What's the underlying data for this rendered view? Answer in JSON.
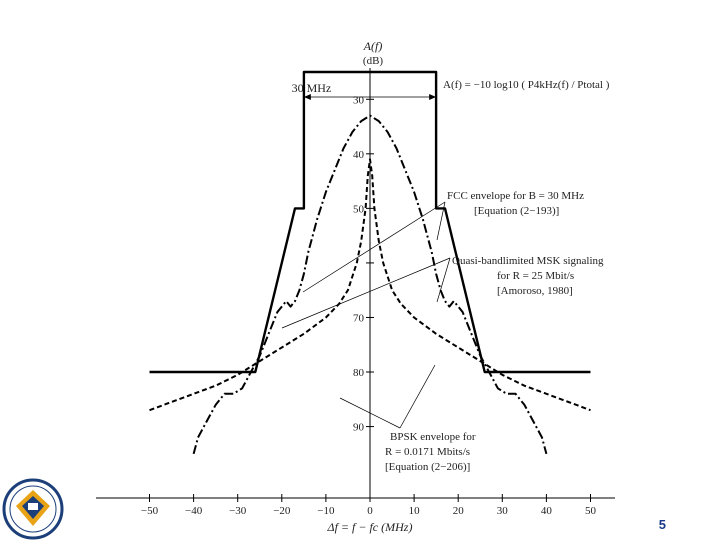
{
  "page_number": "5",
  "colors": {
    "ink": "#000000",
    "page_number": "#1a3a8a",
    "logo_gold": "#e8a317",
    "logo_navy": "#1c3f7a"
  },
  "chart_data": {
    "type": "line",
    "xlabel": "Δf = f − fc (MHz)",
    "ylabel": "A(f)",
    "yunit": "(dB)",
    "xlim": [
      -50,
      50
    ],
    "ylim": [
      95,
      25
    ],
    "y_axis_reversed": true,
    "x_ticks": [
      -50,
      -40,
      -30,
      -20,
      -10,
      0,
      10,
      20,
      30,
      40,
      50
    ],
    "y_ticks": [
      30,
      40,
      50,
      60,
      70,
      80,
      90
    ],
    "y_tick_labels": [
      "30",
      "40",
      "50",
      "",
      "70",
      "80",
      "90"
    ],
    "width_marker": {
      "label": "30 MHz",
      "from": -15,
      "to": 15
    },
    "formula": "A(f) = −10 log10 ( P4kHz(f) / Ptotal )",
    "annotations": [
      {
        "text": "FCC envelope for B = 30 MHz",
        "line2": "[Equation (2−193)]"
      },
      {
        "text": "Quasi-bandlimited MSK signaling",
        "line2": "for R = 25 Mbit/s",
        "line3": "[Amoroso, 1980]"
      },
      {
        "text": "BPSK envelope for",
        "line2": "R = 0.0171 Mbits/s",
        "line3": "[Equation (2−206)]"
      }
    ],
    "series": [
      {
        "name": "FCC envelope for B = 30 MHz",
        "style": "solid",
        "x": [
          -50,
          -26,
          -26,
          -17,
          -15,
          -15,
          15,
          15,
          17,
          26,
          26,
          50
        ],
        "y": [
          80,
          80,
          80,
          50,
          50,
          20,
          20,
          50,
          50,
          80,
          80,
          80
        ]
      },
      {
        "name": "Quasi-bandlimited MSK signaling",
        "style": "dashdot",
        "x": [
          -40,
          -39,
          -37,
          -35,
          -33,
          -31,
          -29,
          -27,
          -25,
          -23,
          -21,
          -20,
          -19,
          -18,
          -17,
          -16,
          -15,
          -14,
          -13,
          -12,
          -10,
          -8,
          -6,
          -4,
          -2,
          0,
          2,
          4,
          6,
          8,
          10,
          12,
          13,
          14,
          15,
          16,
          17,
          18,
          19,
          20,
          21,
          23,
          25,
          27,
          29,
          31,
          33,
          35,
          37,
          39,
          40
        ],
        "y": [
          95,
          92,
          89,
          86,
          84,
          84,
          83,
          80,
          77,
          73,
          69,
          68,
          67,
          68,
          67,
          65,
          62,
          58,
          55,
          52,
          47,
          43,
          39,
          36,
          34,
          33,
          34,
          36,
          39,
          43,
          47,
          52,
          55,
          58,
          62,
          65,
          67,
          68,
          67,
          68,
          69,
          73,
          77,
          80,
          83,
          84,
          84,
          86,
          89,
          92,
          95
        ]
      },
      {
        "name": "BPSK envelope for R = 0.0171 Mbits/s",
        "style": "dashed",
        "x": [
          -50,
          -45,
          -40,
          -35,
          -30,
          -25,
          -20,
          -15,
          -10,
          -7,
          -5,
          -3,
          -2,
          -1,
          -0.5,
          0,
          0.5,
          1,
          2,
          3,
          5,
          7,
          10,
          15,
          20,
          25,
          30,
          35,
          40,
          45,
          50
        ],
        "y": [
          87,
          85.5,
          84,
          82.5,
          80.5,
          78,
          75.5,
          73,
          70,
          67.5,
          65,
          60,
          56,
          50,
          44,
          41,
          44,
          50,
          56,
          60,
          65,
          67.5,
          70,
          73,
          75.5,
          78,
          80.5,
          82.5,
          84,
          85.5,
          87
        ]
      }
    ]
  }
}
